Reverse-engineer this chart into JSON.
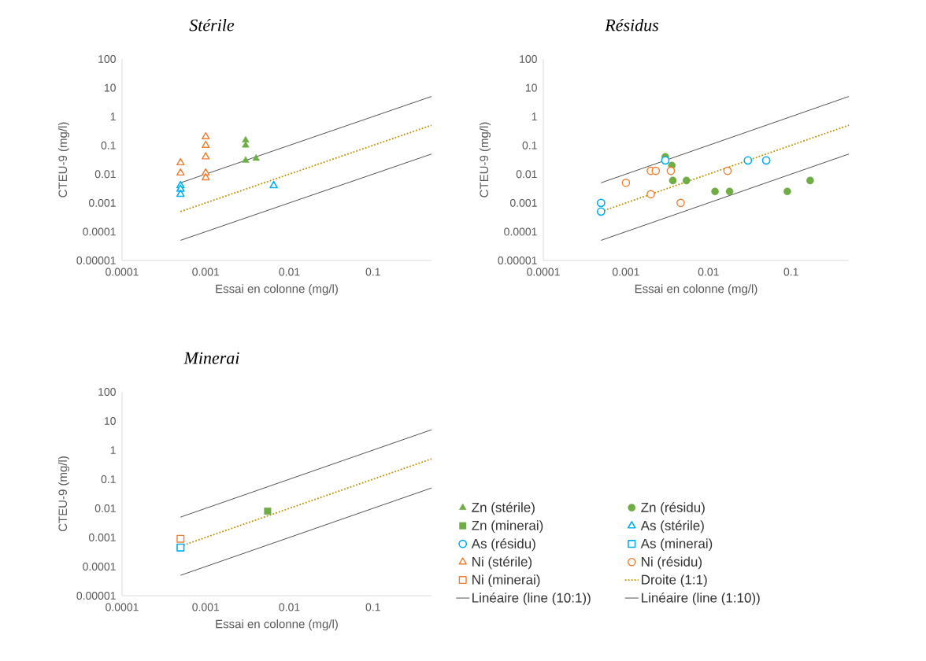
{
  "chart_data": [
    {
      "type": "scatter",
      "title": "Stérile",
      "xlabel": "Essai en colonne (mg/l)",
      "ylabel": "CTEU-9 (mg/l)",
      "log": "xy",
      "legend": false,
      "xlim": [
        0.0001,
        0.5
      ],
      "ylim": [
        1e-05,
        100
      ],
      "xticks": [
        {
          "value": 0.0001,
          "label": "0.0001"
        },
        {
          "value": 0.001,
          "label": "0.001"
        },
        {
          "value": 0.01,
          "label": "0.01"
        },
        {
          "value": 0.1,
          "label": "0.1"
        }
      ],
      "yticks": [
        {
          "value": 1e-05,
          "label": "0.00001"
        },
        {
          "value": 0.0001,
          "label": "0.0001"
        },
        {
          "value": 0.001,
          "label": "0.001"
        },
        {
          "value": 0.01,
          "label": "0.01"
        },
        {
          "value": 0.1,
          "label": "0.1"
        },
        {
          "value": 1,
          "label": "1"
        },
        {
          "value": 10,
          "label": "10"
        },
        {
          "value": 100,
          "label": "100"
        }
      ],
      "series": [
        {
          "name": "Zn (stérile)",
          "color": "#70ad47",
          "marker": "triangle",
          "x": [
            0.003,
            0.003,
            0.003,
            0.004
          ],
          "values": [
            0.15,
            0.1,
            0.03,
            0.035
          ]
        },
        {
          "name": "As (stérile)",
          "color": "#00b0f0",
          "marker": "triangle",
          "x": [
            0.0005,
            0.0005,
            0.0005,
            0.0065
          ],
          "values": [
            0.004,
            0.003,
            0.002,
            0.004
          ]
        },
        {
          "name": "Ni (stérile)",
          "color": "#ed7d31",
          "marker": "triangle",
          "x": [
            0.0005,
            0.0005,
            0.001,
            0.001,
            0.001,
            0.001,
            0.001
          ],
          "values": [
            0.025,
            0.011,
            0.2,
            0.1,
            0.04,
            0.011,
            0.0075
          ]
        },
        {
          "type": "line",
          "color": "#bf9000",
          "line_style": "dotted",
          "marker": "none",
          "x": [
            0.0005,
            0.5
          ],
          "values": [
            0.0005,
            0.5
          ]
        },
        {
          "type": "line",
          "color": "#404040",
          "line_style": "solid",
          "marker": "none",
          "x": [
            0.0005,
            0.5
          ],
          "values": [
            0.005,
            5
          ]
        },
        {
          "type": "line",
          "color": "#404040",
          "line_style": "solid",
          "marker": "none",
          "x": [
            0.0005,
            0.5
          ],
          "values": [
            5e-05,
            0.05
          ]
        }
      ]
    },
    {
      "type": "scatter",
      "title": "Résidus",
      "xlabel": "Essai en colonne (mg/l)",
      "ylabel": "CTEU-9 (mg/l)",
      "log": "xy",
      "legend": false,
      "xlim": [
        0.0001,
        0.5
      ],
      "ylim": [
        1e-05,
        100
      ],
      "xticks": [
        {
          "value": 0.0001,
          "label": "0.0001"
        },
        {
          "value": 0.001,
          "label": "0.001"
        },
        {
          "value": 0.01,
          "label": "0.01"
        },
        {
          "value": 0.1,
          "label": "0.1"
        }
      ],
      "yticks": [
        {
          "value": 1e-05,
          "label": "0.00001"
        },
        {
          "value": 0.0001,
          "label": "0.0001"
        },
        {
          "value": 0.001,
          "label": "0.001"
        },
        {
          "value": 0.01,
          "label": "0.01"
        },
        {
          "value": 0.1,
          "label": "0.1"
        },
        {
          "value": 1,
          "label": "1"
        },
        {
          "value": 10,
          "label": "10"
        },
        {
          "value": 100,
          "label": "100"
        }
      ],
      "series": [
        {
          "name": "Zn (résidu)",
          "color": "#70ad47",
          "marker": "circle",
          "x": [
            0.003,
            0.0036,
            0.0037,
            0.0054,
            0.012,
            0.018,
            0.09,
            0.17
          ],
          "values": [
            0.04,
            0.02,
            0.006,
            0.006,
            0.0025,
            0.0025,
            0.0025,
            0.006
          ]
        },
        {
          "name": "As (résidu)",
          "color": "#00b0f0",
          "marker": "circle",
          "x": [
            0.0005,
            0.0005,
            0.003,
            0.03,
            0.05
          ],
          "values": [
            0.001,
            0.0005,
            0.03,
            0.03,
            0.03
          ]
        },
        {
          "name": "Ni (résidu)",
          "color": "#ed7d31",
          "marker": "circle",
          "x": [
            0.001,
            0.002,
            0.0023,
            0.0035,
            0.002,
            0.0046,
            0.017
          ],
          "values": [
            0.005,
            0.013,
            0.013,
            0.013,
            0.002,
            0.001,
            0.013
          ]
        },
        {
          "type": "line",
          "color": "#bf9000",
          "line_style": "dotted",
          "marker": "none",
          "x": [
            0.0005,
            0.5
          ],
          "values": [
            0.0005,
            0.5
          ]
        },
        {
          "type": "line",
          "color": "#404040",
          "line_style": "solid",
          "marker": "none",
          "x": [
            0.0005,
            0.5
          ],
          "values": [
            0.005,
            5
          ]
        },
        {
          "type": "line",
          "color": "#404040",
          "line_style": "solid",
          "marker": "none",
          "x": [
            0.0005,
            0.5
          ],
          "values": [
            5e-05,
            0.05
          ]
        }
      ]
    },
    {
      "type": "scatter",
      "title": "Minerai",
      "xlabel": "Essai en colonne (mg/l)",
      "ylabel": "CTEU-9 (mg/l)",
      "log": "xy",
      "legend": "right",
      "xlim": [
        0.0001,
        0.5
      ],
      "ylim": [
        1e-05,
        100
      ],
      "xticks": [
        {
          "value": 0.0001,
          "label": "0.0001"
        },
        {
          "value": 0.001,
          "label": "0.001"
        },
        {
          "value": 0.01,
          "label": "0.01"
        },
        {
          "value": 0.1,
          "label": "0.1"
        }
      ],
      "yticks": [
        {
          "value": 1e-05,
          "label": "0.00001"
        },
        {
          "value": 0.0001,
          "label": "0.0001"
        },
        {
          "value": 0.001,
          "label": "0.001"
        },
        {
          "value": 0.01,
          "label": "0.01"
        },
        {
          "value": 0.1,
          "label": "0.1"
        },
        {
          "value": 1,
          "label": "1"
        },
        {
          "value": 10,
          "label": "10"
        },
        {
          "value": 100,
          "label": "100"
        }
      ],
      "series": [
        {
          "name": "Zn (minerai)",
          "color": "#70ad47",
          "marker": "square",
          "x": [
            0.0055
          ],
          "values": [
            0.008
          ]
        },
        {
          "name": "As (minerai)",
          "color": "#00b0f0",
          "marker": "square",
          "x": [
            0.0005
          ],
          "values": [
            0.00045
          ]
        },
        {
          "name": "Ni (minerai)",
          "color": "#ed7d31",
          "marker": "square",
          "x": [
            0.0005
          ],
          "values": [
            0.0009
          ]
        },
        {
          "type": "line",
          "name": "Droite (1:1)",
          "color": "#bf9000",
          "line_style": "dotted",
          "marker": "none",
          "x": [
            0.0005,
            0.5
          ],
          "values": [
            0.0005,
            0.5
          ]
        },
        {
          "type": "line",
          "name": "Linéaire (line (10:1))",
          "color": "#404040",
          "line_style": "solid",
          "marker": "none",
          "x": [
            0.0005,
            0.5
          ],
          "values": [
            0.005,
            5
          ]
        },
        {
          "type": "line",
          "name": "Linéaire (line (1:10))",
          "color": "#404040",
          "line_style": "solid",
          "marker": "none",
          "x": [
            0.0005,
            0.5
          ],
          "values": [
            5e-05,
            0.05
          ]
        }
      ]
    }
  ]
}
